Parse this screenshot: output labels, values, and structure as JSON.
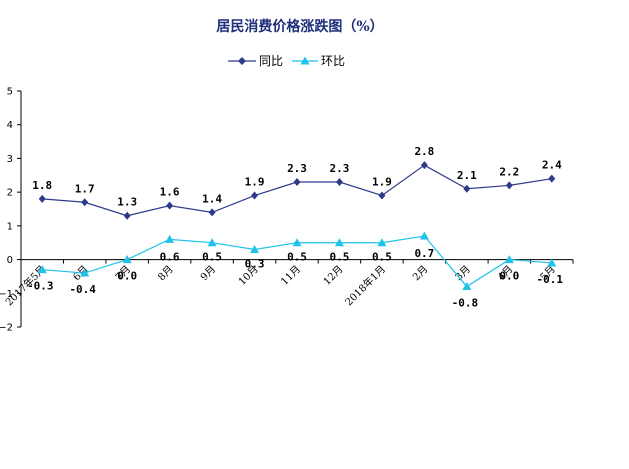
{
  "chart_data": {
    "type": "line",
    "title": "居民消费价格涨跌图（%）",
    "categories": [
      "2017年5月",
      "6月",
      "7月",
      "8月",
      "9月",
      "10月",
      "11月",
      "12月",
      "2018年1月",
      "2月",
      "3月",
      "4月",
      "5月"
    ],
    "series": [
      {
        "name": "同比",
        "color": "#2e3a8c",
        "marker": "diamond",
        "values": [
          1.8,
          1.7,
          1.3,
          1.6,
          1.4,
          1.9,
          2.3,
          2.3,
          1.9,
          2.8,
          2.1,
          2.2,
          2.4
        ],
        "labels": [
          "1.8",
          "1.7",
          "1.3",
          "1.6",
          "1.4",
          "1.9",
          "2.3",
          "2.3",
          "1.9",
          "2.8",
          "2.1",
          "2.2",
          "2.4"
        ]
      },
      {
        "name": "环比",
        "color": "#1fc3e8",
        "marker": "triangle",
        "values": [
          -0.3,
          -0.4,
          0.0,
          0.6,
          0.5,
          0.3,
          0.5,
          0.5,
          0.5,
          0.7,
          -0.8,
          0.0,
          -0.1
        ],
        "labels": [
          "-0.3",
          "-0.4",
          "0.0",
          "0.6",
          "0.5",
          "0.3",
          "0.5",
          "0.5",
          "0.5",
          "0.7",
          "-0.8",
          "0.0",
          "-0.1"
        ]
      }
    ],
    "ylim": [
      -2,
      5
    ],
    "yticks": [
      -2,
      -1,
      0,
      1,
      2,
      3,
      4,
      5
    ],
    "ytick_labels": [
      "−2",
      "−1",
      "0",
      "1",
      "2",
      "3",
      "4",
      "5"
    ],
    "grid": false,
    "legend": "top-center"
  }
}
